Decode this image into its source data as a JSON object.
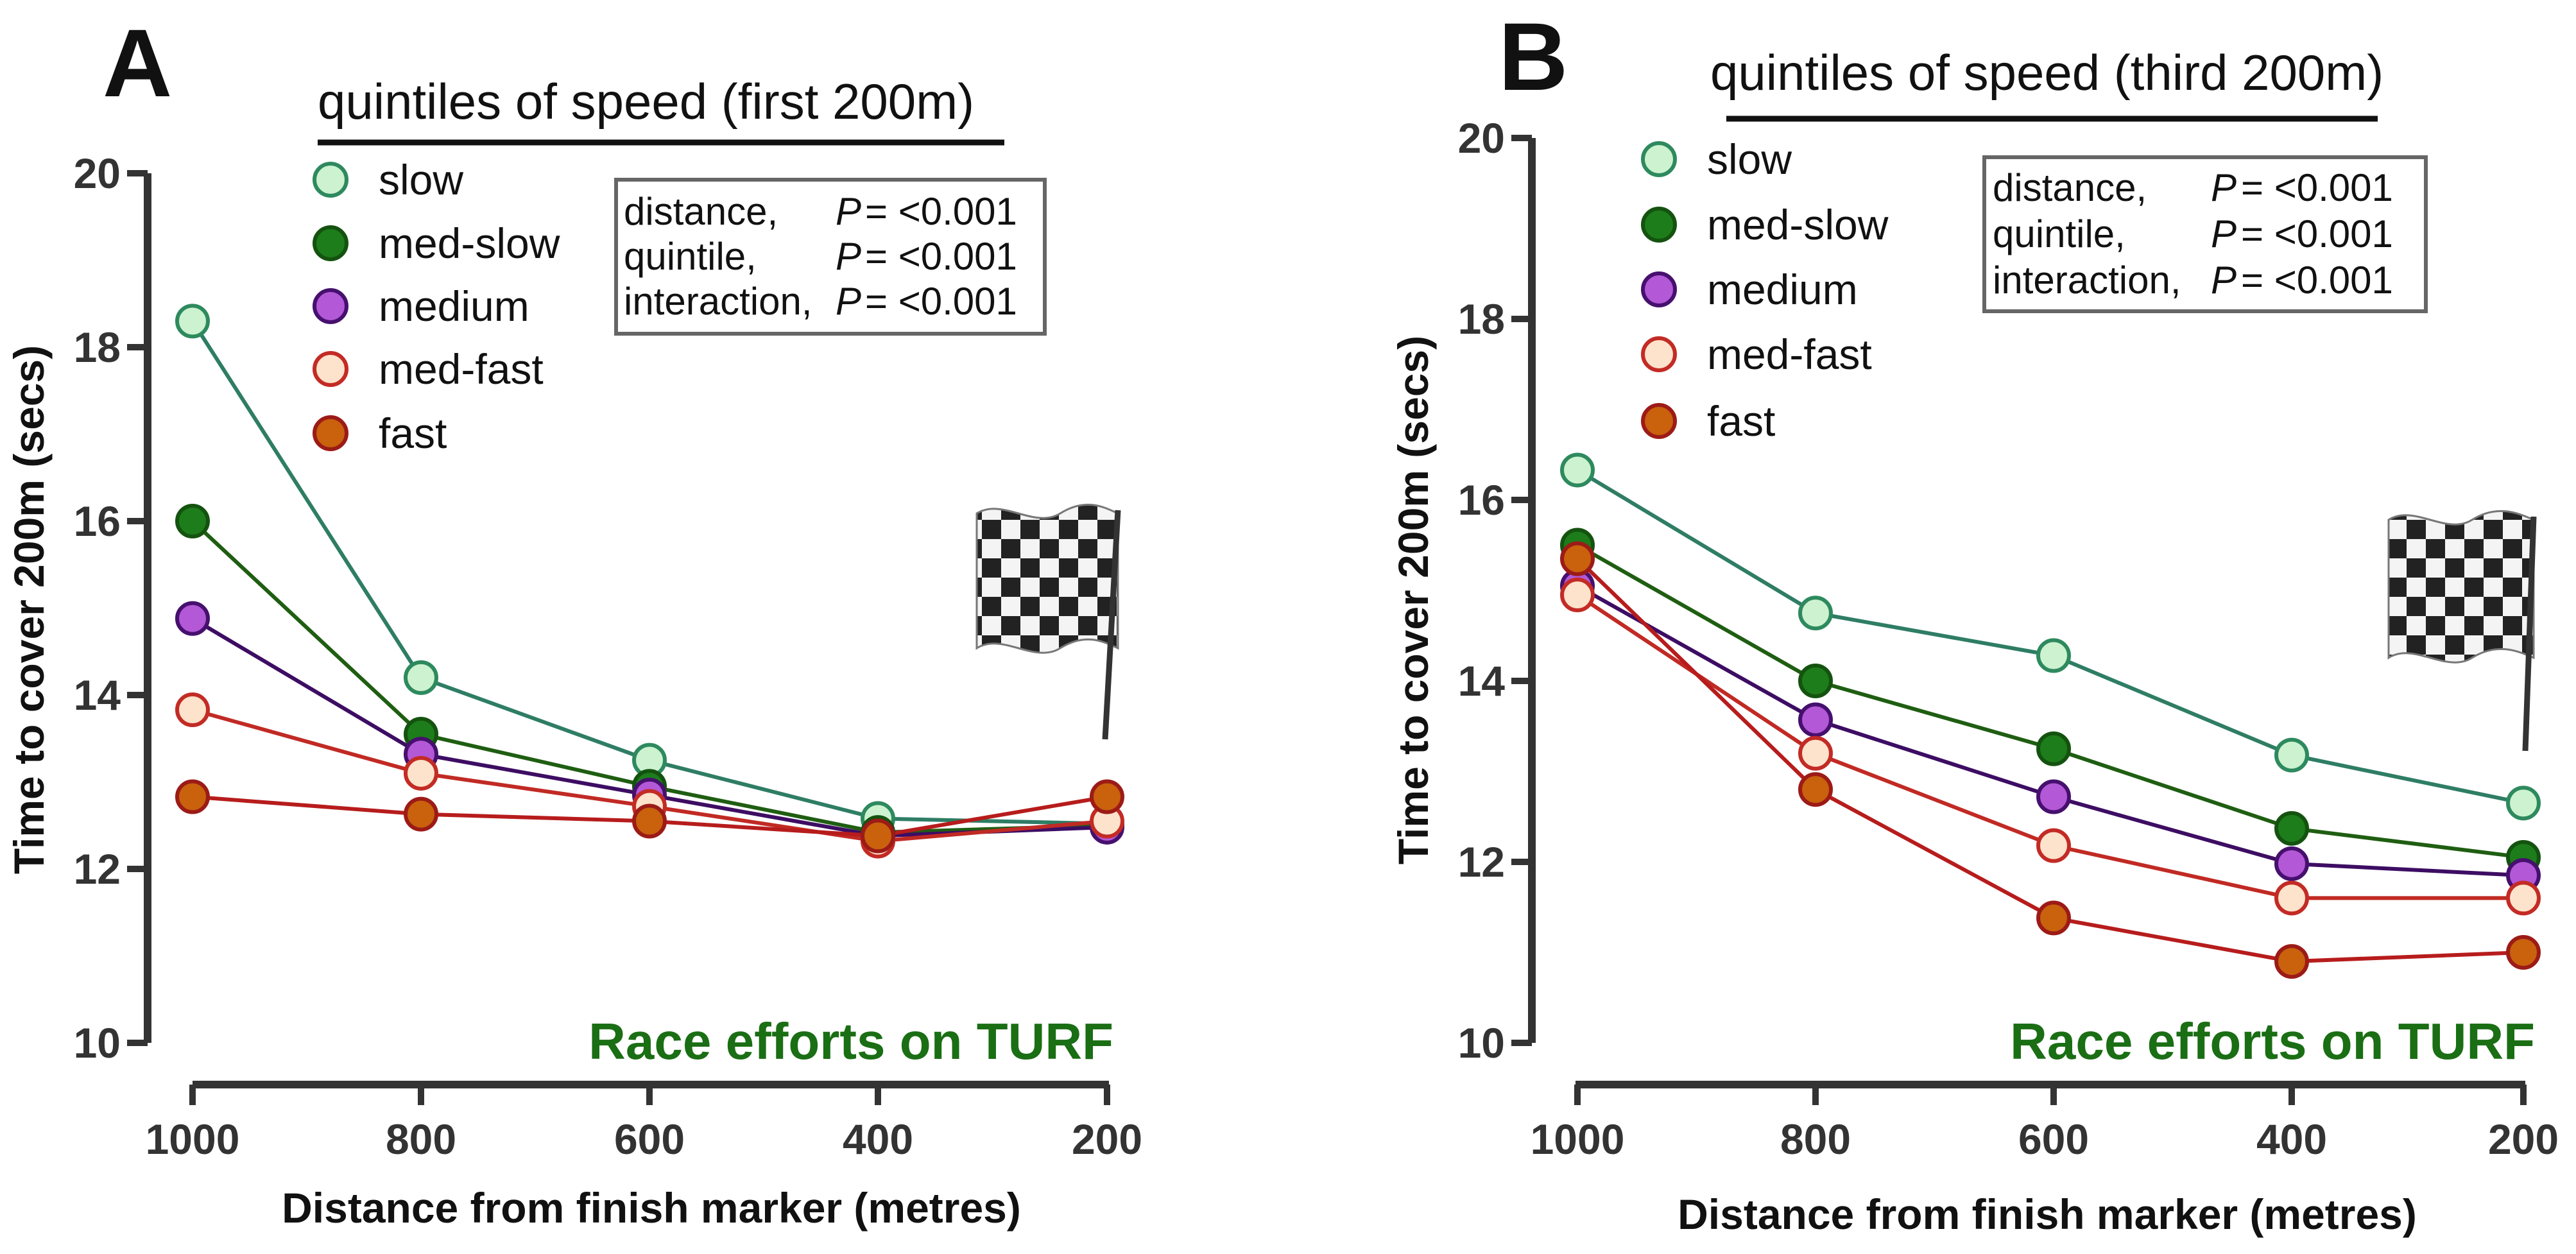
{
  "chart_data": [
    {
      "type": "line",
      "panel_label": "A",
      "title": "quintiles of speed (first 200m)",
      "xlabel": "Distance from finish marker (metres)",
      "ylabel": "Time to cover 200m (secs)",
      "x": [
        1000,
        800,
        600,
        400,
        200
      ],
      "x_tick_labels": [
        "1000",
        "800",
        "600",
        "400",
        "200"
      ],
      "ylim": [
        10,
        20
      ],
      "y_ticks": [
        10,
        12,
        14,
        16,
        18,
        20
      ],
      "y_tick_labels": [
        "10",
        "12",
        "14",
        "16",
        "18",
        "20"
      ],
      "grid": false,
      "legend_position": "top-left",
      "series": [
        {
          "name": "slow",
          "values": [
            18.3,
            14.2,
            13.25,
            12.58,
            12.52
          ]
        },
        {
          "name": "med-slow",
          "values": [
            16.0,
            13.55,
            12.95,
            12.42,
            12.5
          ]
        },
        {
          "name": "medium",
          "values": [
            14.88,
            13.32,
            12.85,
            12.38,
            12.48
          ]
        },
        {
          "name": "med-fast",
          "values": [
            13.83,
            13.1,
            12.72,
            12.32,
            12.55
          ]
        },
        {
          "name": "fast",
          "values": [
            12.83,
            12.63,
            12.55,
            12.38,
            12.83
          ]
        }
      ],
      "stats": [
        {
          "term": "distance,",
          "p_symbol": "P",
          "p_text": "= <0.001"
        },
        {
          "term": "quintile,",
          "p_symbol": "P",
          "p_text": "= <0.001"
        },
        {
          "term": "interaction,",
          "p_symbol": "P",
          "p_text": "= <0.001"
        }
      ],
      "annotation": "Race efforts on TURF"
    },
    {
      "type": "line",
      "panel_label": "B",
      "title": "quintiles of speed (third 200m)",
      "xlabel": "Distance from finish marker (metres)",
      "ylabel": "Time to cover 200m (secs)",
      "x": [
        1000,
        800,
        600,
        400,
        200
      ],
      "x_tick_labels": [
        "1000",
        "800",
        "600",
        "400",
        "200"
      ],
      "ylim": [
        10,
        20
      ],
      "y_ticks": [
        10,
        12,
        14,
        16,
        18,
        20
      ],
      "y_tick_labels": [
        "10",
        "12",
        "14",
        "16",
        "18",
        "20"
      ],
      "grid": false,
      "legend_position": "top-left",
      "series": [
        {
          "name": "slow",
          "values": [
            16.33,
            14.75,
            14.28,
            13.18,
            12.65
          ]
        },
        {
          "name": "med-slow",
          "values": [
            15.5,
            14.0,
            13.25,
            12.37,
            12.05
          ]
        },
        {
          "name": "medium",
          "values": [
            15.05,
            13.57,
            12.72,
            11.98,
            11.85
          ]
        },
        {
          "name": "med-fast",
          "values": [
            14.95,
            13.2,
            12.18,
            11.6,
            11.6
          ]
        },
        {
          "name": "fast",
          "values": [
            15.35,
            12.8,
            11.38,
            10.9,
            11.0
          ]
        }
      ],
      "stats": [
        {
          "term": "distance,",
          "p_symbol": "P",
          "p_text": "= <0.001"
        },
        {
          "term": "quintile,",
          "p_symbol": "P",
          "p_text": "= <0.001"
        },
        {
          "term": "interaction,",
          "p_symbol": "P",
          "p_text": "= <0.001"
        }
      ],
      "annotation": "Race efforts on TURF"
    }
  ],
  "series_styles": {
    "slow": {
      "line": "#2e7d64",
      "fill": "#cdf2cf",
      "stroke": "#2e8a5e"
    },
    "med-slow": {
      "line": "#1f5e12",
      "fill": "#1e7d1b",
      "stroke": "#14530f"
    },
    "medium": {
      "line": "#3d0d63",
      "fill": "#b358d6",
      "stroke": "#46106e"
    },
    "med-fast": {
      "line": "#c12a24",
      "fill": "#fde3cb",
      "stroke": "#c32b25"
    },
    "fast": {
      "line": "#b71c1c",
      "fill": "#c9610d",
      "stroke": "#9c1b17"
    }
  },
  "colors": {
    "axis": "#333333",
    "annotation": "#1a6e14",
    "stats_border": "#666666"
  },
  "icon": "checkered-flag-icon"
}
